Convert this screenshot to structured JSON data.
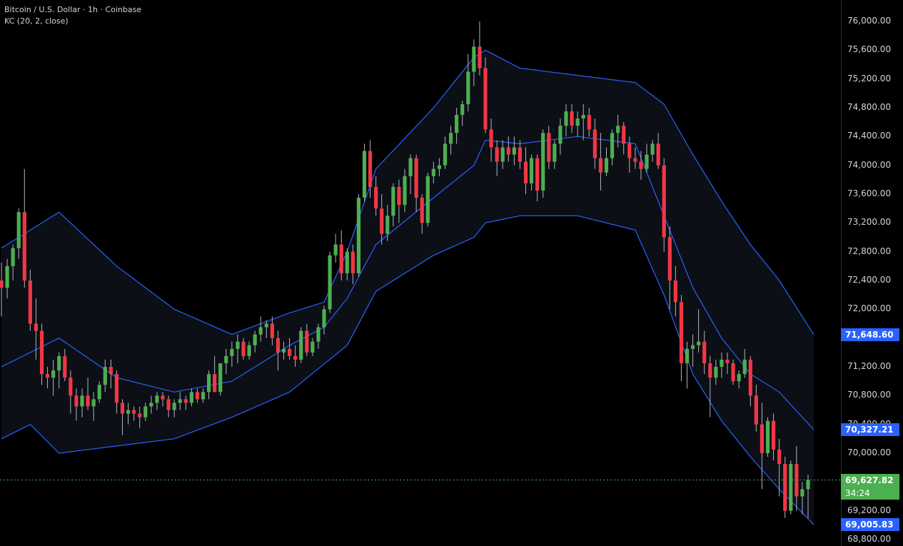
{
  "legend": {
    "symbol_line": "Bitcoin / U.S. Dollar · 1h · Coinbase",
    "indicator_line": "KC (20, 2, close)"
  },
  "price_axis": {
    "ticks": [
      "76,000.00",
      "75,600.00",
      "75,200.00",
      "74,800.00",
      "74,400.00",
      "74,000.00",
      "73,600.00",
      "73,200.00",
      "72,800.00",
      "72,400.00",
      "72,000.00",
      "71,600.00",
      "71,200.00",
      "70,800.00",
      "70,400.00",
      "70,000.00",
      "69,600.00",
      "69,200.00",
      "68,800.00"
    ]
  },
  "badges": {
    "upper_band": "71,648.60",
    "middle_band": "70,327.21",
    "last_price": "69,627.82",
    "countdown": "34:24",
    "lower_band": "69,005.83"
  },
  "colors": {
    "up": "#26a69a",
    "up_body": "#4caf50",
    "down": "#f23645",
    "band": "#2962ff",
    "badge_blue": "#2962ff",
    "badge_green": "#4caf50"
  },
  "chart_data": {
    "type": "candlestick",
    "title": "Bitcoin / U.S. Dollar · 1h · Coinbase",
    "indicator": "KC (20, 2, close)",
    "ylim": [
      68800,
      76000
    ],
    "candles": [
      [
        72400,
        72650,
        71900,
        72300
      ],
      [
        72300,
        72700,
        72150,
        72600
      ],
      [
        72600,
        72900,
        72400,
        72850
      ],
      [
        72850,
        73400,
        72700,
        73350
      ],
      [
        73350,
        73950,
        72300,
        72400
      ],
      [
        72400,
        72550,
        71700,
        71800
      ],
      [
        71800,
        72150,
        71300,
        71700
      ],
      [
        71700,
        71800,
        70950,
        71100
      ],
      [
        71100,
        71200,
        70900,
        71050
      ],
      [
        71050,
        71300,
        70800,
        71150
      ],
      [
        71150,
        71400,
        70900,
        71350
      ],
      [
        71350,
        71450,
        71000,
        71050
      ],
      [
        71050,
        71150,
        70550,
        70800
      ],
      [
        70800,
        70900,
        70450,
        70650
      ],
      [
        70650,
        70900,
        70500,
        70800
      ],
      [
        70800,
        71050,
        70600,
        70650
      ],
      [
        70650,
        70850,
        70450,
        70750
      ],
      [
        70750,
        71000,
        70700,
        70950
      ],
      [
        70950,
        71300,
        70850,
        71200
      ],
      [
        71200,
        71300,
        70900,
        71100
      ],
      [
        71100,
        71150,
        70550,
        70700
      ],
      [
        70700,
        70750,
        70250,
        70550
      ],
      [
        70550,
        70700,
        70400,
        70600
      ],
      [
        70600,
        70650,
        70450,
        70550
      ],
      [
        70550,
        70650,
        70350,
        70500
      ],
      [
        70500,
        70700,
        70450,
        70650
      ],
      [
        70650,
        70800,
        70550,
        70700
      ],
      [
        70700,
        70850,
        70600,
        70800
      ],
      [
        70800,
        70850,
        70650,
        70750
      ],
      [
        70750,
        70800,
        70500,
        70600
      ],
      [
        70600,
        70750,
        70500,
        70700
      ],
      [
        70700,
        70850,
        70600,
        70750
      ],
      [
        70750,
        70800,
        70600,
        70700
      ],
      [
        70700,
        70900,
        70650,
        70850
      ],
      [
        70850,
        70900,
        70700,
        70750
      ],
      [
        70750,
        70900,
        70700,
        70850
      ],
      [
        70850,
        71150,
        70750,
        71100
      ],
      [
        71100,
        71350,
        70850,
        70850
      ],
      [
        70850,
        71250,
        70800,
        71250
      ],
      [
        71250,
        71450,
        71100,
        71350
      ],
      [
        71350,
        71550,
        71200,
        71450
      ],
      [
        71450,
        71650,
        71250,
        71550
      ],
      [
        71550,
        71600,
        71300,
        71350
      ],
      [
        71350,
        71550,
        71300,
        71500
      ],
      [
        71500,
        71700,
        71400,
        71650
      ],
      [
        71650,
        71900,
        71550,
        71750
      ],
      [
        71750,
        71850,
        71600,
        71800
      ],
      [
        71800,
        71900,
        71500,
        71600
      ],
      [
        71600,
        71700,
        71150,
        71400
      ],
      [
        71400,
        71550,
        71300,
        71450
      ],
      [
        71450,
        71600,
        71300,
        71350
      ],
      [
        71350,
        71500,
        71200,
        71300
      ],
      [
        71300,
        71750,
        71250,
        71700
      ],
      [
        71700,
        71800,
        71350,
        71400
      ],
      [
        71400,
        71600,
        71350,
        71550
      ],
      [
        71550,
        71800,
        71450,
        71750
      ],
      [
        71750,
        72050,
        71650,
        72000
      ],
      [
        72000,
        72800,
        71950,
        72750
      ],
      [
        72750,
        73050,
        72650,
        72900
      ],
      [
        72900,
        73100,
        72400,
        72500
      ],
      [
        72500,
        72850,
        72400,
        72800
      ],
      [
        72800,
        72900,
        72350,
        72500
      ],
      [
        72500,
        73600,
        72450,
        73550
      ],
      [
        73550,
        74300,
        73500,
        74200
      ],
      [
        74200,
        74350,
        73550,
        73700
      ],
      [
        73700,
        73850,
        73300,
        73400
      ],
      [
        73400,
        73600,
        72900,
        73050
      ],
      [
        73050,
        73450,
        72950,
        73300
      ],
      [
        73300,
        73750,
        73150,
        73700
      ],
      [
        73700,
        73800,
        73200,
        73450
      ],
      [
        73450,
        73950,
        73350,
        73850
      ],
      [
        73850,
        74150,
        73600,
        74100
      ],
      [
        74100,
        74150,
        73350,
        73550
      ],
      [
        73550,
        73600,
        73050,
        73200
      ],
      [
        73200,
        73900,
        73150,
        73850
      ],
      [
        73850,
        74050,
        73750,
        73950
      ],
      [
        73950,
        74100,
        73850,
        74000
      ],
      [
        74000,
        74400,
        73950,
        74300
      ],
      [
        74300,
        74550,
        74150,
        74450
      ],
      [
        74450,
        74800,
        74300,
        74700
      ],
      [
        74700,
        74900,
        74550,
        74850
      ],
      [
        74850,
        75550,
        74750,
        75300
      ],
      [
        75300,
        75750,
        75100,
        75650
      ],
      [
        75650,
        76000,
        75250,
        75350
      ],
      [
        75350,
        75500,
        74450,
        74500
      ],
      [
        74500,
        74650,
        74050,
        74250
      ],
      [
        74250,
        74350,
        73850,
        74050
      ],
      [
        74050,
        74350,
        73950,
        74250
      ],
      [
        74250,
        74400,
        74050,
        74150
      ],
      [
        74150,
        74400,
        74000,
        74250
      ],
      [
        74250,
        74350,
        73950,
        74050
      ],
      [
        74050,
        74250,
        73600,
        73750
      ],
      [
        73750,
        74150,
        73650,
        74100
      ],
      [
        74100,
        74150,
        73500,
        73650
      ],
      [
        73650,
        74500,
        73550,
        74450
      ],
      [
        74450,
        74550,
        73950,
        74050
      ],
      [
        74050,
        74350,
        73950,
        74300
      ],
      [
        74300,
        74650,
        74150,
        74550
      ],
      [
        74550,
        74850,
        74400,
        74750
      ],
      [
        74750,
        74850,
        74450,
        74550
      ],
      [
        74550,
        74750,
        74400,
        74650
      ],
      [
        74650,
        74850,
        74350,
        74700
      ],
      [
        74700,
        74800,
        74400,
        74500
      ],
      [
        74500,
        74650,
        73950,
        74100
      ],
      [
        74100,
        74450,
        73650,
        73900
      ],
      [
        73900,
        74250,
        73850,
        74100
      ],
      [
        74100,
        74500,
        74000,
        74450
      ],
      [
        74450,
        74700,
        74250,
        74550
      ],
      [
        74550,
        74600,
        74150,
        74300
      ],
      [
        74300,
        74400,
        73900,
        74100
      ],
      [
        74100,
        74250,
        73950,
        74050
      ],
      [
        74050,
        74200,
        73800,
        73950
      ],
      [
        73950,
        74300,
        73900,
        74150
      ],
      [
        74150,
        74350,
        74050,
        74300
      ],
      [
        74300,
        74450,
        73950,
        74000
      ],
      [
        74000,
        74100,
        72800,
        73000
      ],
      [
        73000,
        73150,
        72000,
        72400
      ],
      [
        72400,
        72600,
        71900,
        72100
      ],
      [
        72100,
        72200,
        71000,
        71250
      ],
      [
        71250,
        71550,
        70900,
        71450
      ],
      [
        71450,
        71650,
        71200,
        71500
      ],
      [
        71500,
        72000,
        71400,
        71550
      ],
      [
        71550,
        71700,
        71100,
        71250
      ],
      [
        71250,
        71350,
        70500,
        71050
      ],
      [
        71050,
        71300,
        70950,
        71200
      ],
      [
        71200,
        71400,
        71050,
        71300
      ],
      [
        71300,
        71400,
        71100,
        71250
      ],
      [
        71250,
        71300,
        70950,
        71000
      ],
      [
        71000,
        71150,
        70900,
        71100
      ],
      [
        71100,
        71450,
        71050,
        71300
      ],
      [
        71300,
        71350,
        70650,
        70800
      ],
      [
        70800,
        70950,
        70300,
        70400
      ],
      [
        70400,
        70700,
        69500,
        70000
      ],
      [
        70000,
        70500,
        69950,
        70450
      ],
      [
        70450,
        70550,
        69900,
        70050
      ],
      [
        70050,
        70200,
        69400,
        69850
      ],
      [
        69850,
        69950,
        69100,
        69200
      ],
      [
        69200,
        69900,
        69150,
        69850
      ],
      [
        69850,
        70100,
        69200,
        69400
      ],
      [
        69400,
        69600,
        69150,
        69500
      ],
      [
        69500,
        69700,
        69100,
        69628
      ]
    ],
    "keltner": {
      "upper": {
        "x": [
          0,
          10,
          20,
          30,
          40,
          50,
          56,
          60,
          65,
          75,
          82,
          84,
          90,
          100,
          110,
          115,
          120,
          125,
          130,
          135,
          141
        ],
        "y": [
          72850,
          73350,
          72600,
          72000,
          71650,
          71950,
          72100,
          72800,
          73950,
          74800,
          75500,
          75600,
          75350,
          75250,
          75150,
          74850,
          74150,
          73500,
          72900,
          72400,
          71648.6
        ]
      },
      "middle": {
        "x": [
          0,
          10,
          20,
          30,
          40,
          50,
          56,
          60,
          65,
          75,
          82,
          84,
          90,
          100,
          110,
          115,
          120,
          125,
          130,
          135,
          141
        ],
        "y": [
          71200,
          71600,
          71050,
          70850,
          71000,
          71500,
          71750,
          72150,
          72900,
          73550,
          74000,
          74350,
          74300,
          74400,
          74300,
          73300,
          72300,
          71600,
          71100,
          70850,
          70327.21
        ]
      },
      "lower": {
        "x": [
          0,
          5,
          10,
          20,
          30,
          40,
          50,
          60,
          65,
          75,
          82,
          84,
          90,
          100,
          110,
          115,
          120,
          125,
          130,
          135,
          141
        ],
        "y": [
          70200,
          70400,
          70000,
          70100,
          70200,
          70500,
          70850,
          71500,
          72250,
          72750,
          73000,
          73200,
          73300,
          73300,
          73100,
          72200,
          71100,
          70450,
          69950,
          69500,
          69005.83
        ]
      }
    },
    "last_price": 69627.82
  }
}
